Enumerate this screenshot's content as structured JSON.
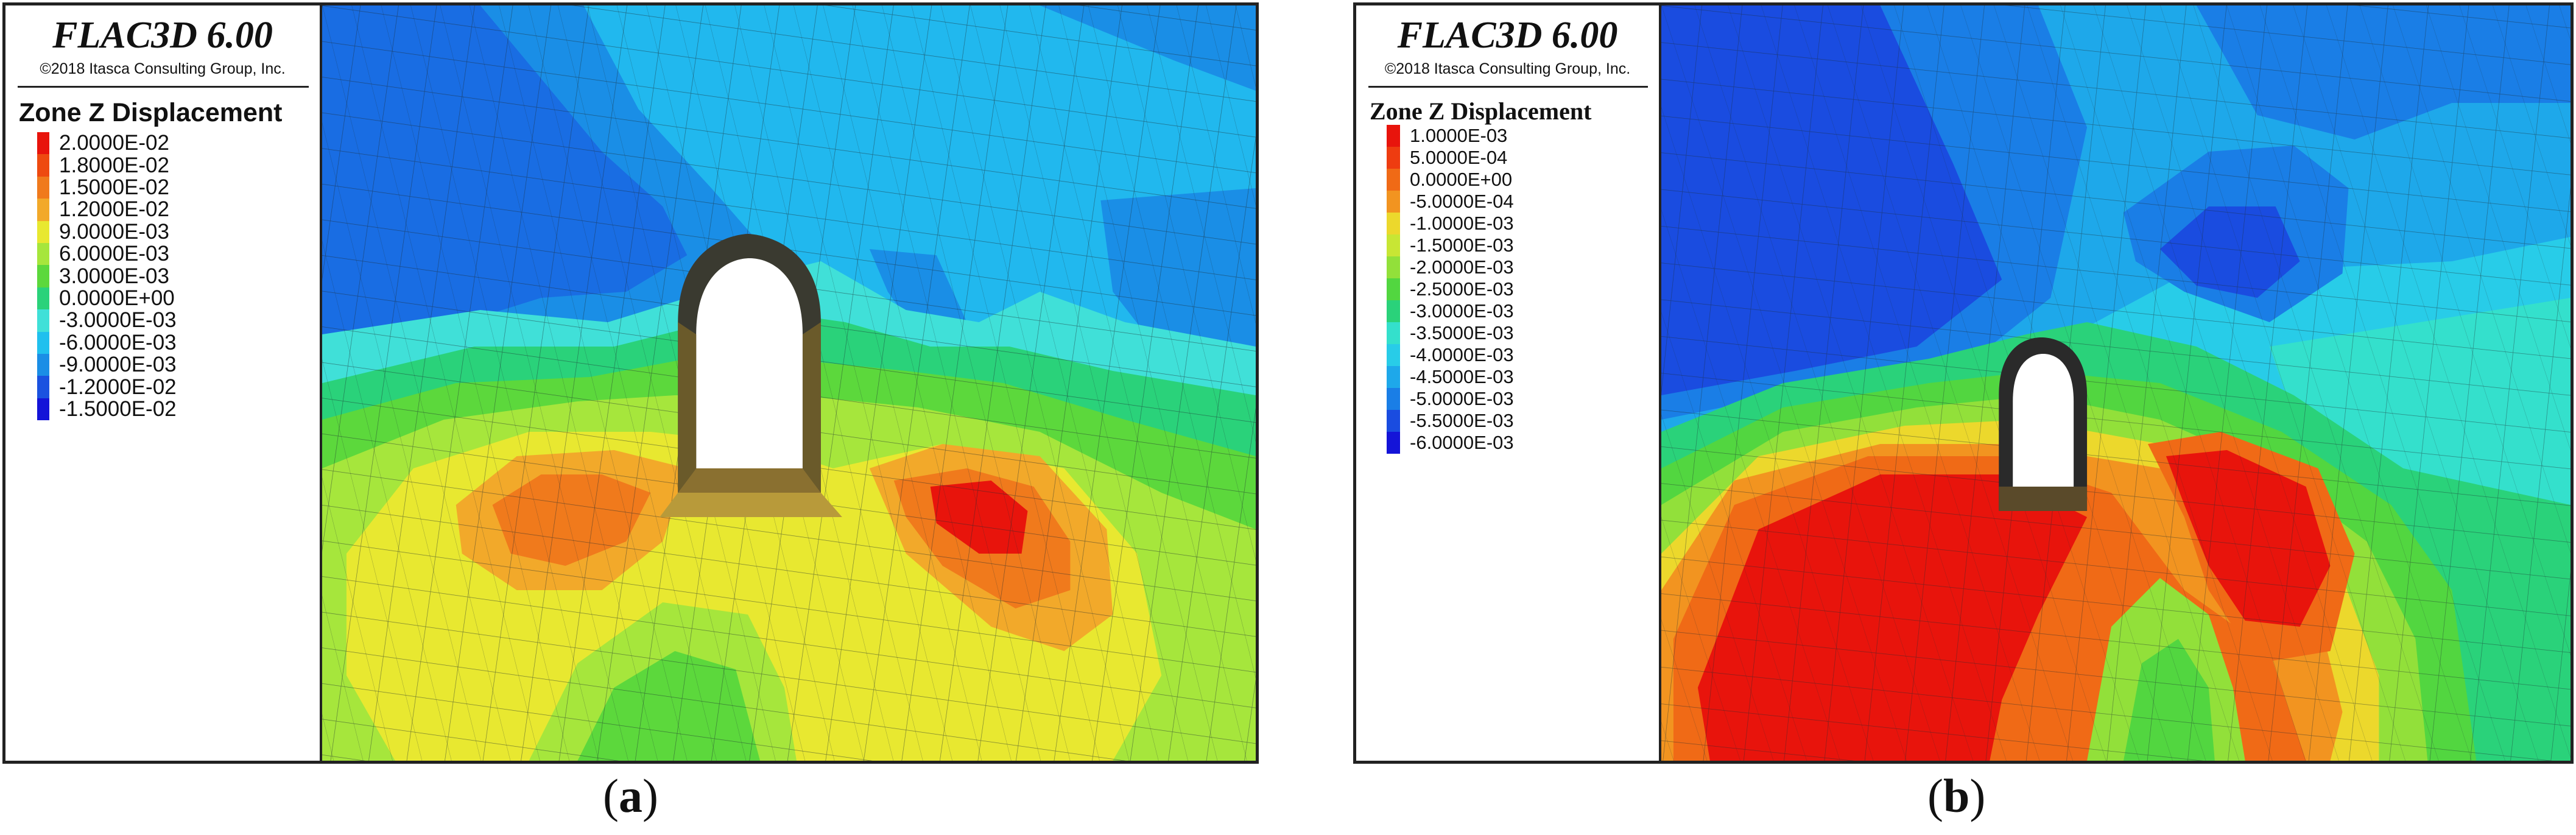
{
  "panels": [
    {
      "app_name": "FLAC3D 6.00",
      "copyright": "©2018 Itasca Consulting Group, Inc.",
      "legend_title": "Zone Z Displacement",
      "legend": [
        {
          "label": "2.0000E-02",
          "color": "#e8140c"
        },
        {
          "label": "1.8000E-02",
          "color": "#ee4a10"
        },
        {
          "label": "1.5000E-02",
          "color": "#f07a1c"
        },
        {
          "label": "1.2000E-02",
          "color": "#f2a92a"
        },
        {
          "label": "9.0000E-03",
          "color": "#e8e830"
        },
        {
          "label": "6.0000E-03",
          "color": "#a6e63c"
        },
        {
          "label": "3.0000E-03",
          "color": "#5cd83c"
        },
        {
          "label": "0.0000E+00",
          "color": "#2ad27a"
        },
        {
          "label": "-3.0000E-03",
          "color": "#40e0d8"
        },
        {
          "label": "-6.0000E-03",
          "color": "#20c0ee"
        },
        {
          "label": "-9.0000E-03",
          "color": "#1a8ee6"
        },
        {
          "label": "-1.2000E-02",
          "color": "#1a52e0"
        },
        {
          "label": "-1.5000E-02",
          "color": "#1414d8"
        }
      ],
      "caption_open": "(",
      "caption_letter": "a",
      "caption_close": ")"
    },
    {
      "app_name": "FLAC3D 6.00",
      "copyright": "©2018 Itasca Consulting Group, Inc.",
      "legend_title": "Zone Z Displacement",
      "legend": [
        {
          "label": "1.0000E-03",
          "color": "#e8140c"
        },
        {
          "label": "5.0000E-04",
          "color": "#ee3c10"
        },
        {
          "label": "0.0000E+00",
          "color": "#f06a16"
        },
        {
          "label": "-5.0000E-04",
          "color": "#f29420"
        },
        {
          "label": "-1.0000E-03",
          "color": "#ecd82c"
        },
        {
          "label": "-1.5000E-03",
          "color": "#c8e634"
        },
        {
          "label": "-2.0000E-03",
          "color": "#92e03a"
        },
        {
          "label": "-2.5000E-03",
          "color": "#52d640"
        },
        {
          "label": "-3.0000E-03",
          "color": "#2ad27a"
        },
        {
          "label": "-3.5000E-03",
          "color": "#34e0cc"
        },
        {
          "label": "-4.0000E-03",
          "color": "#28cce8"
        },
        {
          "label": "-4.5000E-03",
          "color": "#1ea8ea"
        },
        {
          "label": "-5.0000E-03",
          "color": "#1a7ee6"
        },
        {
          "label": "-5.5000E-03",
          "color": "#1a4ce0"
        },
        {
          "label": "-6.0000E-03",
          "color": "#1414d8"
        }
      ],
      "caption_open": "(",
      "caption_letter": "b",
      "caption_close": ")"
    }
  ]
}
